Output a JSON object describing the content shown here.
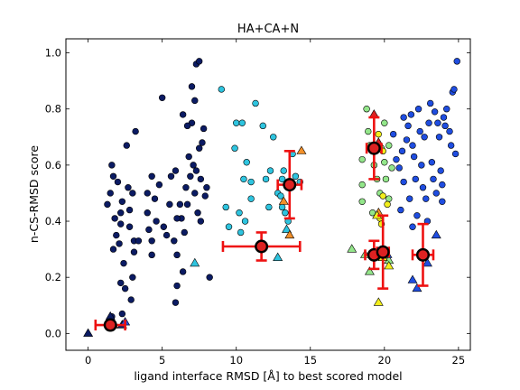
{
  "chart_data": {
    "type": "scatter",
    "title": "HA+CA+N",
    "xlabel": "ligand interface RMSD [Å] to best scored model",
    "ylabel": "n-CS-RMSD score",
    "xlim": [
      -1.5,
      25.8
    ],
    "ylim": [
      -0.06,
      1.05
    ],
    "xticks": [
      0,
      5,
      10,
      15,
      20,
      25
    ],
    "xtick_labels": [
      "0",
      "5",
      "10",
      "15",
      "20",
      "25"
    ],
    "yticks": [
      0.0,
      0.2,
      0.4,
      0.6,
      0.8,
      1.0
    ],
    "ytick_labels": [
      "0.0",
      "0.2",
      "0.4",
      "0.6",
      "0.8",
      "1.0"
    ],
    "grid": false,
    "colors": {
      "navy": "#0b1b63",
      "cyan": "#2ec4df",
      "blue": "#1f4de0",
      "light_green": "#93e68a",
      "yellow": "#f2ee1c",
      "orange": "#f2902a",
      "red": "#dd2222",
      "error_bar": "#ee1111"
    },
    "series": [
      {
        "marker": "circle",
        "color": "navy",
        "points": [
          [
            1.3,
            0.46
          ],
          [
            1.5,
            0.5
          ],
          [
            1.6,
            0.6
          ],
          [
            1.7,
            0.56
          ],
          [
            1.8,
            0.41
          ],
          [
            1.9,
            0.35
          ],
          [
            1.7,
            0.3
          ],
          [
            2.0,
            0.54
          ],
          [
            2.2,
            0.39
          ],
          [
            2.2,
            0.43
          ],
          [
            2.3,
            0.47
          ],
          [
            2.1,
            0.32
          ],
          [
            2.4,
            0.25
          ],
          [
            2.2,
            0.18
          ],
          [
            2.5,
            0.16
          ],
          [
            2.6,
            0.67
          ],
          [
            2.7,
            0.52
          ],
          [
            2.8,
            0.44
          ],
          [
            2.8,
            0.38
          ],
          [
            3.0,
            0.5
          ],
          [
            3.1,
            0.33
          ],
          [
            3.1,
            0.29
          ],
          [
            3.0,
            0.2
          ],
          [
            3.2,
            0.72
          ],
          [
            3.4,
            0.33
          ],
          [
            2.9,
            0.12
          ],
          [
            2.3,
            0.07
          ],
          [
            1.6,
            0.06
          ],
          [
            4.0,
            0.5
          ],
          [
            4.0,
            0.43
          ],
          [
            4.1,
            0.37
          ],
          [
            4.3,
            0.33
          ],
          [
            4.3,
            0.28
          ],
          [
            4.6,
            0.4
          ],
          [
            4.8,
            0.53
          ],
          [
            5.0,
            0.84
          ],
          [
            5.1,
            0.38
          ],
          [
            5.3,
            0.35
          ],
          [
            5.5,
            0.46
          ],
          [
            5.6,
            0.56
          ],
          [
            5.8,
            0.33
          ],
          [
            5.9,
            0.58
          ],
          [
            6.0,
            0.28
          ],
          [
            6.0,
            0.17
          ],
          [
            5.9,
            0.11
          ],
          [
            6.2,
            0.46
          ],
          [
            6.3,
            0.41
          ],
          [
            6.5,
            0.36
          ],
          [
            6.6,
            0.52
          ],
          [
            6.7,
            0.46
          ],
          [
            6.8,
            0.63
          ],
          [
            6.9,
            0.56
          ],
          [
            7.0,
            0.75
          ],
          [
            7.1,
            0.6
          ],
          [
            7.2,
            0.5
          ],
          [
            7.3,
            0.58
          ],
          [
            7.3,
            0.96
          ],
          [
            7.5,
            0.97
          ],
          [
            7.5,
            0.66
          ],
          [
            7.7,
            0.68
          ],
          [
            7.6,
            0.55
          ],
          [
            7.8,
            0.73
          ],
          [
            7.9,
            0.49
          ],
          [
            8.0,
            0.52
          ],
          [
            6.7,
            0.74
          ],
          [
            6.4,
            0.78
          ],
          [
            7.0,
            0.88
          ],
          [
            7.2,
            0.83
          ],
          [
            6.0,
            0.41
          ],
          [
            4.5,
            0.48
          ],
          [
            8.2,
            0.2
          ],
          [
            7.4,
            0.43
          ],
          [
            7.6,
            0.4
          ],
          [
            6.4,
            0.22
          ],
          [
            4.3,
            0.56
          ]
        ]
      },
      {
        "marker": "circle",
        "color": "cyan",
        "points": [
          [
            9.0,
            0.87
          ],
          [
            9.3,
            0.45
          ],
          [
            9.5,
            0.38
          ],
          [
            9.9,
            0.66
          ],
          [
            10.0,
            0.75
          ],
          [
            10.2,
            0.43
          ],
          [
            10.3,
            0.36
          ],
          [
            10.4,
            0.75
          ],
          [
            10.5,
            0.55
          ],
          [
            10.6,
            0.4
          ],
          [
            10.7,
            0.61
          ],
          [
            11.0,
            0.54
          ],
          [
            11.0,
            0.48
          ],
          [
            11.3,
            0.82
          ],
          [
            11.8,
            0.74
          ],
          [
            12.0,
            0.55
          ],
          [
            12.2,
            0.45
          ],
          [
            12.3,
            0.58
          ],
          [
            12.5,
            0.7
          ],
          [
            12.8,
            0.5
          ],
          [
            13.0,
            0.49
          ],
          [
            13.1,
            0.55
          ],
          [
            13.1,
            0.45
          ],
          [
            13.3,
            0.43
          ],
          [
            13.5,
            0.4
          ],
          [
            13.8,
            0.64
          ],
          [
            14.0,
            0.56
          ],
          [
            14.3,
            0.54
          ],
          [
            13.2,
            0.58
          ]
        ]
      },
      {
        "marker": "circle",
        "color": "light_green",
        "points": [
          [
            18.5,
            0.62
          ],
          [
            18.5,
            0.53
          ],
          [
            18.5,
            0.47
          ],
          [
            18.8,
            0.8
          ],
          [
            18.9,
            0.72
          ],
          [
            19.0,
            0.67
          ],
          [
            19.3,
            0.6
          ],
          [
            19.5,
            0.55
          ],
          [
            19.7,
            0.5
          ],
          [
            19.8,
            0.66
          ],
          [
            20.0,
            0.61
          ],
          [
            20.1,
            0.55
          ],
          [
            20.3,
            0.67
          ],
          [
            20.3,
            0.48
          ],
          [
            20.5,
            0.59
          ],
          [
            20.0,
            0.75
          ],
          [
            19.2,
            0.43
          ]
        ]
      },
      {
        "marker": "circle",
        "color": "yellow",
        "points": [
          [
            19.9,
            0.49
          ],
          [
            20.2,
            0.46
          ],
          [
            19.7,
            0.41
          ],
          [
            19.8,
            0.39
          ],
          [
            19.6,
            0.71
          ],
          [
            19.9,
            0.65
          ]
        ]
      },
      {
        "marker": "circle",
        "color": "blue",
        "points": [
          [
            20.6,
            0.71
          ],
          [
            21.0,
            0.59
          ],
          [
            21.2,
            0.65
          ],
          [
            21.3,
            0.77
          ],
          [
            21.5,
            0.69
          ],
          [
            21.6,
            0.74
          ],
          [
            21.8,
            0.78
          ],
          [
            21.9,
            0.67
          ],
          [
            22.0,
            0.63
          ],
          [
            22.1,
            0.55
          ],
          [
            22.3,
            0.8
          ],
          [
            22.4,
            0.72
          ],
          [
            22.5,
            0.6
          ],
          [
            22.6,
            0.52
          ],
          [
            22.7,
            0.7
          ],
          [
            22.8,
            0.48
          ],
          [
            22.9,
            0.4
          ],
          [
            23.0,
            0.75
          ],
          [
            23.1,
            0.82
          ],
          [
            23.2,
            0.61
          ],
          [
            23.3,
            0.55
          ],
          [
            23.4,
            0.79
          ],
          [
            23.5,
            0.5
          ],
          [
            23.6,
            0.75
          ],
          [
            23.7,
            0.7
          ],
          [
            23.8,
            0.58
          ],
          [
            23.9,
            0.47
          ],
          [
            24.0,
            0.77
          ],
          [
            24.2,
            0.8
          ],
          [
            24.4,
            0.72
          ],
          [
            24.5,
            0.67
          ],
          [
            24.6,
            0.86
          ],
          [
            24.7,
            0.87
          ],
          [
            24.8,
            0.64
          ],
          [
            24.9,
            0.97
          ],
          [
            21.3,
            0.54
          ],
          [
            21.7,
            0.48
          ],
          [
            21.1,
            0.44
          ],
          [
            22.2,
            0.42
          ],
          [
            23.9,
            0.53
          ],
          [
            24.1,
            0.74
          ],
          [
            21.9,
            0.38
          ],
          [
            20.8,
            0.62
          ]
        ]
      },
      {
        "marker": "triangle",
        "color": "navy",
        "points": [
          [
            0.0,
            0.0
          ],
          [
            1.5,
            0.06
          ],
          [
            2.3,
            0.03
          ]
        ]
      },
      {
        "marker": "triangle",
        "color": "cyan",
        "points": [
          [
            7.2,
            0.25
          ],
          [
            13.4,
            0.37
          ],
          [
            12.8,
            0.27
          ]
        ]
      },
      {
        "marker": "triangle",
        "color": "orange",
        "points": [
          [
            13.2,
            0.47
          ],
          [
            14.4,
            0.65
          ],
          [
            13.6,
            0.35
          ],
          [
            19.6,
            0.43
          ],
          [
            20.0,
            0.29
          ]
        ]
      },
      {
        "marker": "triangle",
        "color": "red",
        "points": [
          [
            1.7,
            0.03
          ],
          [
            19.3,
            0.78
          ],
          [
            19.6,
            0.68
          ]
        ]
      },
      {
        "marker": "triangle",
        "color": "light_green",
        "points": [
          [
            17.8,
            0.3
          ],
          [
            18.7,
            0.28
          ],
          [
            19.0,
            0.22
          ],
          [
            20.3,
            0.26
          ]
        ]
      },
      {
        "marker": "triangle",
        "color": "yellow",
        "points": [
          [
            19.6,
            0.11
          ],
          [
            19.9,
            0.27
          ],
          [
            20.3,
            0.24
          ],
          [
            19.5,
            0.42
          ]
        ]
      },
      {
        "marker": "triangle",
        "color": "blue",
        "points": [
          [
            21.9,
            0.19
          ],
          [
            22.2,
            0.16
          ],
          [
            23.5,
            0.35
          ],
          [
            22.9,
            0.25
          ],
          [
            20.2,
            0.28
          ],
          [
            2.5,
            0.04
          ]
        ]
      }
    ],
    "summary_points": [
      {
        "x": 1.5,
        "y": 0.03,
        "xerr": 1.0,
        "yerr": 0.0
      },
      {
        "x": 11.7,
        "y": 0.31,
        "xerr": 2.6,
        "yerr": 0.05
      },
      {
        "x": 13.6,
        "y": 0.53,
        "xerr": 0.8,
        "yerr": 0.12
      },
      {
        "x": 19.3,
        "y": 0.66,
        "xerr": 0.5,
        "yerr": 0.11
      },
      {
        "x": 19.3,
        "y": 0.28,
        "xerr": 0.6,
        "yerr": 0.05
      },
      {
        "x": 19.9,
        "y": 0.29,
        "xerr": 0.4,
        "yerr": 0.13
      },
      {
        "x": 22.6,
        "y": 0.28,
        "xerr": 0.7,
        "yerr": 0.11
      }
    ]
  }
}
